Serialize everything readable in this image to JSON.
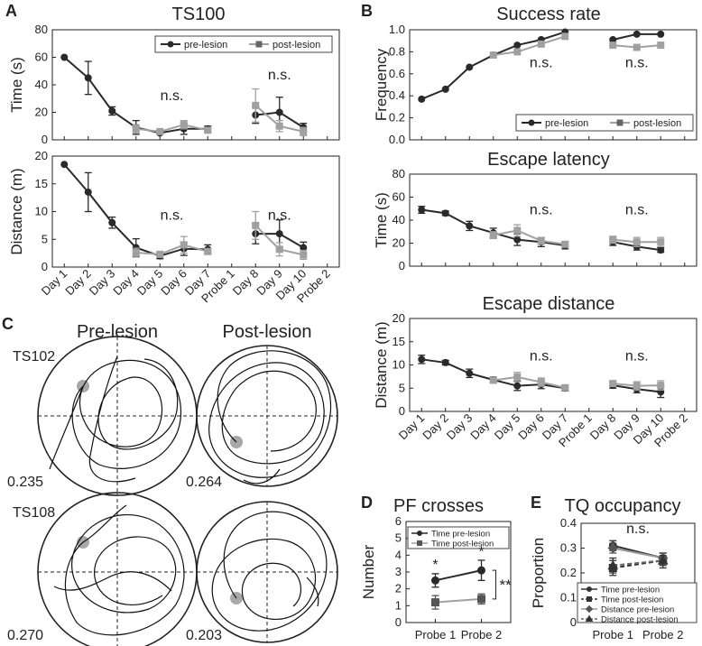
{
  "colors": {
    "pre": "#2a2a2a",
    "post": "#a0a0a0",
    "platform": "#a8a8a8"
  },
  "panel_letters": [
    "A",
    "B",
    "C",
    "D",
    "E"
  ],
  "day_labels": [
    "Day 1",
    "Day 2",
    "Day 3",
    "Day 4",
    "Day 5",
    "Day 6",
    "Day 7",
    "Probe 1",
    "Day 8",
    "Day 9",
    "Day 10",
    "Probe 2"
  ],
  "legend": {
    "pre": "pre-lesion",
    "post": "post-lesion"
  },
  "ns_label": "n.s.",
  "chart_data": [
    {
      "id": "A_time",
      "type": "line",
      "title": "TS100",
      "ylabel": "Time (s)",
      "ylim": [
        0,
        80
      ],
      "yticks": [
        0,
        20,
        40,
        60,
        80
      ],
      "series": [
        {
          "name": "pre-lesion",
          "x": [
            1,
            2,
            3,
            4,
            5,
            6,
            7,
            9,
            10,
            11
          ],
          "values": [
            60,
            45,
            21,
            9,
            5,
            8,
            8,
            18,
            20,
            9
          ],
          "err": [
            0,
            12,
            3,
            5,
            1,
            4,
            2,
            6,
            11,
            3
          ]
        },
        {
          "name": "post-lesion",
          "x": [
            4,
            5,
            6,
            7,
            9,
            10,
            11
          ],
          "values": [
            8,
            6,
            11,
            7,
            25,
            10,
            6
          ],
          "err": [
            3,
            1,
            3,
            1,
            12,
            4,
            3
          ]
        }
      ],
      "annotations": [
        {
          "text": "n.s.",
          "x": 5.5,
          "y": 29
        },
        {
          "text": "n.s.",
          "x": 10,
          "y": 44
        }
      ]
    },
    {
      "id": "A_distance",
      "type": "line",
      "ylabel": "Distance (m)",
      "ylim": [
        0,
        20
      ],
      "yticks": [
        0,
        5,
        10,
        15,
        20
      ],
      "series": [
        {
          "name": "pre-lesion",
          "x": [
            1,
            2,
            3,
            4,
            5,
            6,
            7,
            9,
            10,
            11
          ],
          "values": [
            18.5,
            13.5,
            8,
            3.5,
            2,
            3.3,
            3.2,
            6,
            6,
            3.5
          ],
          "err": [
            0,
            3.5,
            1,
            1.6,
            0.5,
            1.2,
            0.8,
            1.8,
            2.5,
            1
          ]
        },
        {
          "name": "post-lesion",
          "x": [
            4,
            5,
            6,
            7,
            9,
            10,
            11
          ],
          "values": [
            2.6,
            2.3,
            4,
            2.8,
            7.5,
            3.2,
            2.2
          ],
          "err": [
            0.8,
            0.3,
            1.5,
            0.5,
            2.5,
            1.2,
            0.8
          ]
        }
      ],
      "annotations": [
        {
          "text": "n.s.",
          "x": 5.5,
          "y": 8.5
        },
        {
          "text": "n.s.",
          "x": 10,
          "y": 8.5
        }
      ]
    },
    {
      "id": "B_success",
      "type": "line",
      "title": "Success rate",
      "ylabel": "Frequency",
      "ylim": [
        0,
        1
      ],
      "yticks": [
        0,
        0.2,
        0.4,
        0.6,
        0.8,
        1.0
      ],
      "series": [
        {
          "name": "pre-lesion",
          "x": [
            1,
            2,
            3,
            4,
            5,
            6,
            7,
            9,
            10,
            11
          ],
          "values": [
            0.37,
            0.46,
            0.66,
            0.77,
            0.86,
            0.91,
            0.98,
            0.91,
            0.96,
            0.96
          ]
        },
        {
          "name": "post-lesion",
          "x": [
            4,
            5,
            6,
            7,
            9,
            10,
            11
          ],
          "values": [
            0.77,
            0.8,
            0.87,
            0.94,
            0.86,
            0.84,
            0.86
          ]
        }
      ],
      "annotations": [
        {
          "text": "n.s.",
          "x": 6,
          "y": 0.66
        },
        {
          "text": "n.s.",
          "x": 10,
          "y": 0.66
        }
      ]
    },
    {
      "id": "B_latency",
      "type": "line",
      "title": "Escape latency",
      "ylabel": "Time (s)",
      "ylim": [
        0,
        80
      ],
      "yticks": [
        0,
        20,
        40,
        60,
        80
      ],
      "series": [
        {
          "name": "pre-lesion",
          "x": [
            1,
            2,
            3,
            4,
            5,
            6,
            7,
            9,
            10,
            11
          ],
          "values": [
            49,
            46,
            35,
            29,
            23,
            21,
            18,
            21,
            17,
            14
          ],
          "err": [
            3,
            2,
            4,
            4,
            5,
            4,
            3,
            3,
            3,
            2
          ]
        },
        {
          "name": "post-lesion",
          "x": [
            4,
            5,
            6,
            7,
            9,
            10,
            11
          ],
          "values": [
            27,
            31,
            22,
            19,
            23,
            21,
            21
          ],
          "err": [
            3,
            5,
            3,
            2,
            3,
            4,
            4
          ]
        }
      ],
      "annotations": [
        {
          "text": "n.s.",
          "x": 6,
          "y": 45
        },
        {
          "text": "n.s.",
          "x": 10,
          "y": 45
        }
      ]
    },
    {
      "id": "B_distance",
      "type": "line",
      "title": "Escape distance",
      "ylabel": "Distance (m)",
      "ylim": [
        0,
        20
      ],
      "yticks": [
        0,
        5,
        10,
        15,
        20
      ],
      "series": [
        {
          "name": "pre-lesion",
          "x": [
            1,
            2,
            3,
            4,
            5,
            6,
            7,
            9,
            10,
            11
          ],
          "values": [
            11.2,
            10.5,
            8.2,
            6.8,
            5.5,
            5.8,
            5,
            5.6,
            4.8,
            4.2
          ],
          "err": [
            0.9,
            0.5,
            0.9,
            0.6,
            1,
            0.9,
            0.6,
            0.6,
            0.8,
            1.2
          ]
        },
        {
          "name": "post-lesion",
          "x": [
            4,
            5,
            6,
            7,
            9,
            10,
            11
          ],
          "values": [
            6.7,
            7.4,
            6.3,
            5.1,
            6,
            5.5,
            5.6
          ],
          "err": [
            0.6,
            1,
            0.9,
            0.5,
            0.6,
            0.9,
            1
          ]
        }
      ],
      "annotations": [
        {
          "text": "n.s.",
          "x": 6,
          "y": 11
        },
        {
          "text": "n.s.",
          "x": 10,
          "y": 11
        }
      ]
    },
    {
      "id": "D_pf",
      "type": "line",
      "title": "PF crosses",
      "ylabel": "Number",
      "ylim": [
        0,
        6
      ],
      "yticks": [
        0,
        1,
        2,
        3,
        4,
        5,
        6
      ],
      "categories": [
        "Probe 1",
        "Probe 2"
      ],
      "series": [
        {
          "name": "Time pre-lesion",
          "values": [
            2.5,
            3.1
          ],
          "err": [
            0.4,
            0.6
          ]
        },
        {
          "name": "Time post-lesion",
          "values": [
            1.2,
            1.4
          ],
          "err": [
            0.4,
            0.3
          ]
        }
      ],
      "annotations": [
        {
          "text": "*"
        },
        {
          "text": "*"
        },
        {
          "text": "**"
        }
      ]
    },
    {
      "id": "E_tq",
      "type": "line",
      "title": "TQ occupancy",
      "ylabel": "Proportion",
      "ylim": [
        0,
        0.4
      ],
      "yticks": [
        0,
        0.1,
        0.2,
        0.3,
        0.4
      ],
      "categories": [
        "Probe 1",
        "Probe 2"
      ],
      "series": [
        {
          "name": "Time pre-lesion",
          "values": [
            0.31,
            0.26
          ],
          "err": [
            0.02,
            0.02
          ]
        },
        {
          "name": "Time post-lesion",
          "values": [
            0.22,
            0.25
          ],
          "err": [
            0.03,
            0.03
          ]
        },
        {
          "name": "Distance pre-lesion",
          "values": [
            0.3,
            0.26
          ],
          "err": [
            0.02,
            0.02
          ]
        },
        {
          "name": "Distance post-lesion",
          "values": [
            0.23,
            0.25
          ],
          "err": [
            0.03,
            0.02
          ]
        }
      ],
      "annotations": [
        {
          "text": "n.s."
        }
      ]
    }
  ],
  "tracks": {
    "col_titles": [
      "Pre-lesion",
      "Post-lesion"
    ],
    "mice": [
      "TS102",
      "TS108"
    ],
    "values": [
      "0.235",
      "0.264",
      "0.270",
      "0.203"
    ]
  },
  "sig": {
    "star": "*",
    "double_star": "**"
  }
}
